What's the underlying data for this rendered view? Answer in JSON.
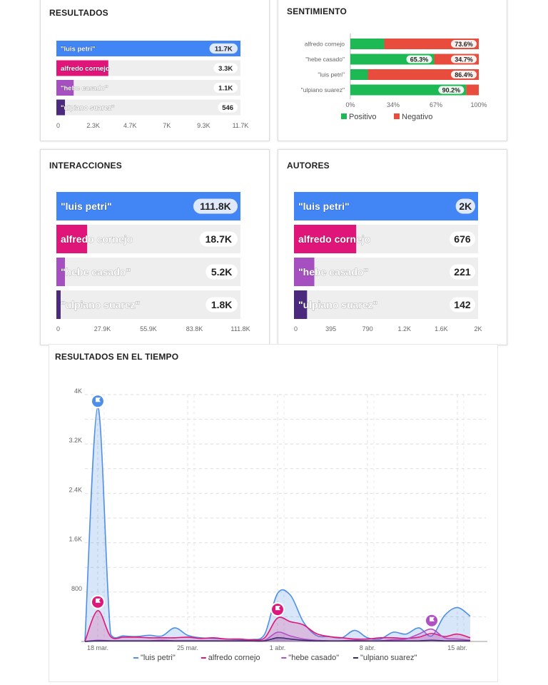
{
  "chart_data": [
    {
      "type": "bar",
      "title": "RESULTADOS",
      "categories": [
        "\"luis petri\"",
        "alfredo cornejo",
        "\"hebe casado\"",
        "\"ulpiano suarez\""
      ],
      "values": [
        11700,
        3300,
        1100,
        546
      ],
      "value_labels": [
        "11.7K",
        "3.3K",
        "1.1K",
        "546"
      ],
      "xlim": [
        0,
        11700
      ],
      "xticks": [
        "0",
        "2.3K",
        "4.7K",
        "7K",
        "9.3K",
        "11.7K"
      ],
      "orientation": "horizontal"
    },
    {
      "type": "bar",
      "title": "SENTIMIENTO",
      "stacked": true,
      "orientation": "horizontal",
      "categories": [
        "alfredo cornejo",
        "\"hebe casado\"",
        "\"luis petri\"",
        "\"ulpiano suarez\""
      ],
      "series": [
        {
          "name": "Positivo",
          "values": [
            26.4,
            65.3,
            13.6,
            90.2
          ],
          "labels": [
            "",
            "65.3%",
            "",
            "90.2%"
          ]
        },
        {
          "name": "Negativo",
          "values": [
            73.6,
            34.7,
            86.4,
            9.8
          ],
          "labels": [
            "73.6%",
            "34.7%",
            "86.4%",
            ""
          ]
        }
      ],
      "xlim": [
        0,
        100
      ],
      "xticks": [
        "0%",
        "34%",
        "67%",
        "100%"
      ],
      "legend": "bottom"
    },
    {
      "type": "bar",
      "title": "INTERACCIONES",
      "categories": [
        "\"luis petri\"",
        "alfredo cornejo",
        "\"hebe casado\"",
        "\"ulpiano suarez\""
      ],
      "values": [
        111800,
        18700,
        5200,
        1800
      ],
      "value_labels": [
        "111.8K",
        "18.7K",
        "5.2K",
        "1.8K"
      ],
      "xlim": [
        0,
        111800
      ],
      "xticks": [
        "0",
        "27.9K",
        "55.9K",
        "83.8K",
        "111.8K"
      ],
      "orientation": "horizontal"
    },
    {
      "type": "bar",
      "title": "AUTORES",
      "categories": [
        "\"luis petri\"",
        "alfredo cornejo",
        "\"hebe casado\"",
        "\"ulpiano suarez\""
      ],
      "values": [
        2000,
        676,
        221,
        142
      ],
      "value_labels": [
        "2K",
        "676",
        "221",
        "142"
      ],
      "xlim": [
        0,
        2000
      ],
      "xticks": [
        "0",
        "395",
        "790",
        "1.2K",
        "1.6K",
        "2K"
      ],
      "orientation": "horizontal"
    },
    {
      "type": "area",
      "title": "RESULTADOS EN EL TIEMPO",
      "x": [
        "17 mar.",
        "18 mar.",
        "19 mar.",
        "20 mar.",
        "21 mar.",
        "22 mar.",
        "23 mar.",
        "24 mar.",
        "25 mar.",
        "26 mar.",
        "27 mar.",
        "28 mar.",
        "29 mar.",
        "30 mar.",
        "31 mar.",
        "1 abr.",
        "2 abr.",
        "3 abr.",
        "4 abr.",
        "5 abr.",
        "6 abr.",
        "7 abr.",
        "8 abr.",
        "9 abr.",
        "10 abr.",
        "11 abr.",
        "12 abr.",
        "13 abr.",
        "14 abr.",
        "15 abr.",
        "16 abr."
      ],
      "xticks": [
        "18 mar.",
        "25 mar.",
        "1 abr.",
        "8 abr.",
        "15 abr."
      ],
      "ylim": [
        0,
        4000
      ],
      "yticks": [
        "800",
        "1.6K",
        "2.4K",
        "3.2K",
        "4K"
      ],
      "series": [
        {
          "name": "\"luis petri\"",
          "color": "#4f8fe8",
          "values": [
            0,
            3800,
            120,
            90,
            80,
            100,
            90,
            220,
            100,
            60,
            50,
            40,
            30,
            30,
            120,
            780,
            750,
            320,
            100,
            80,
            60,
            180,
            60,
            40,
            150,
            120,
            220,
            90,
            420,
            550,
            410
          ]
        },
        {
          "name": "alfredo cornejo",
          "color": "#e0177a",
          "values": [
            0,
            500,
            80,
            70,
            70,
            60,
            60,
            60,
            70,
            50,
            60,
            40,
            40,
            30,
            60,
            380,
            320,
            270,
            130,
            80,
            60,
            40,
            40,
            60,
            60,
            50,
            70,
            130,
            80,
            120,
            60
          ]
        },
        {
          "name": "\"hebe casado\"",
          "color": "#b14fc5",
          "values": [
            0,
            20,
            10,
            10,
            10,
            10,
            20,
            10,
            10,
            10,
            10,
            10,
            10,
            10,
            20,
            150,
            90,
            40,
            20,
            10,
            10,
            20,
            10,
            10,
            30,
            40,
            120,
            200,
            60,
            40,
            20
          ]
        },
        {
          "name": "\"ulpiano suarez\"",
          "color": "#3a2a6e",
          "values": [
            0,
            10,
            10,
            10,
            10,
            10,
            10,
            10,
            10,
            10,
            10,
            10,
            10,
            10,
            10,
            60,
            40,
            20,
            10,
            10,
            10,
            10,
            10,
            10,
            10,
            10,
            10,
            20,
            10,
            10,
            10
          ]
        }
      ],
      "annotations": [
        {
          "type": "flag",
          "series": 0,
          "x": "18 mar."
        },
        {
          "type": "flag",
          "series": 1,
          "x": "18 mar."
        },
        {
          "type": "flag",
          "series": 1,
          "x": "1 abr."
        },
        {
          "type": "flag",
          "series": 2,
          "x": "13 abr."
        }
      ],
      "legend": "bottom"
    }
  ],
  "colors": {
    "luis_petri": "#4285f4",
    "alfredo_cornejo": "#e0157a",
    "hebe_casado": "#a54fc1",
    "ulpiano_suarez": "#4b2a7d",
    "positivo": "#1db954",
    "negativo": "#e74c3c",
    "track": "#eeeeee"
  }
}
